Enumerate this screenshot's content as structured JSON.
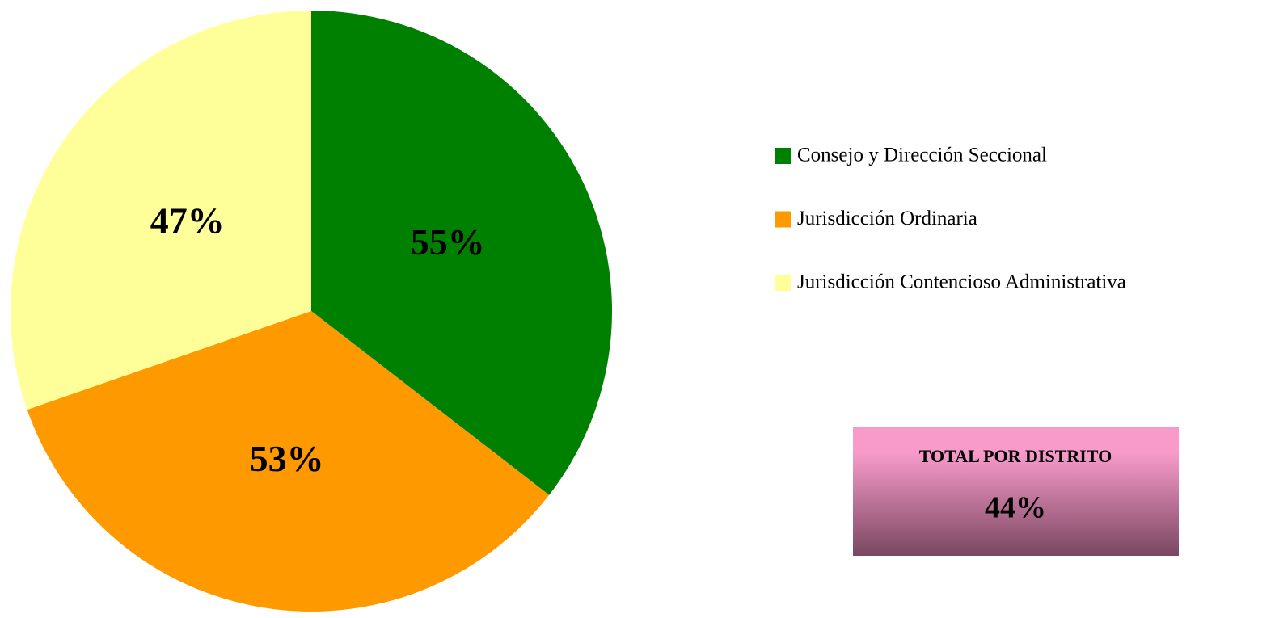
{
  "chart_data": {
    "type": "pie",
    "categories": [
      "Consejo y Dirección Seccional",
      "Jurisdicción Ordinaria",
      "Jurisdicción Contencioso Administrativa"
    ],
    "values": [
      55,
      53,
      47
    ],
    "value_labels": [
      "55%",
      "53%",
      "47%"
    ],
    "colors": [
      "#008000",
      "#ff9900",
      "#ffff99"
    ],
    "legend": "right",
    "total": {
      "label": "TOTAL POR DISTRITO",
      "value": 44,
      "value_label": "44%"
    }
  }
}
